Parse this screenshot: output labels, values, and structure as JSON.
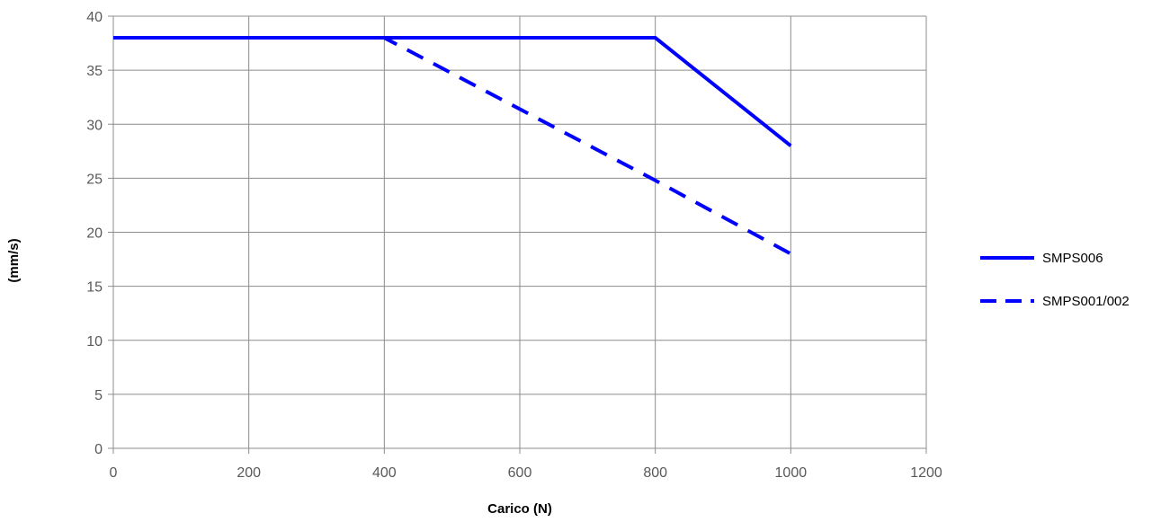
{
  "chart_data": {
    "type": "line",
    "title": "",
    "xlabel": "Carico (N)",
    "ylabel": "(mm/s)",
    "xlim": [
      0,
      1200
    ],
    "ylim": [
      0,
      40
    ],
    "xticks": [
      0,
      200,
      400,
      600,
      800,
      1000,
      1200
    ],
    "yticks": [
      0,
      5,
      10,
      15,
      20,
      25,
      30,
      35,
      40
    ],
    "xtick_labels": [
      "0",
      "200",
      "400",
      "600",
      "800",
      "1000",
      "1200"
    ],
    "ytick_labels": [
      "0",
      "5",
      "10",
      "15",
      "20",
      "25",
      "30",
      "35",
      "40"
    ],
    "grid": true,
    "legend_position": "right",
    "series": [
      {
        "name": "SMPS006",
        "style": "solid",
        "color": "#0000ff",
        "x": [
          0,
          800,
          1000
        ],
        "y": [
          38,
          38,
          28
        ]
      },
      {
        "name": "SMPS001/002",
        "style": "dashed",
        "color": "#0000ff",
        "x": [
          0,
          400,
          800,
          1000
        ],
        "y": [
          38,
          38,
          24.8,
          18
        ]
      }
    ]
  }
}
